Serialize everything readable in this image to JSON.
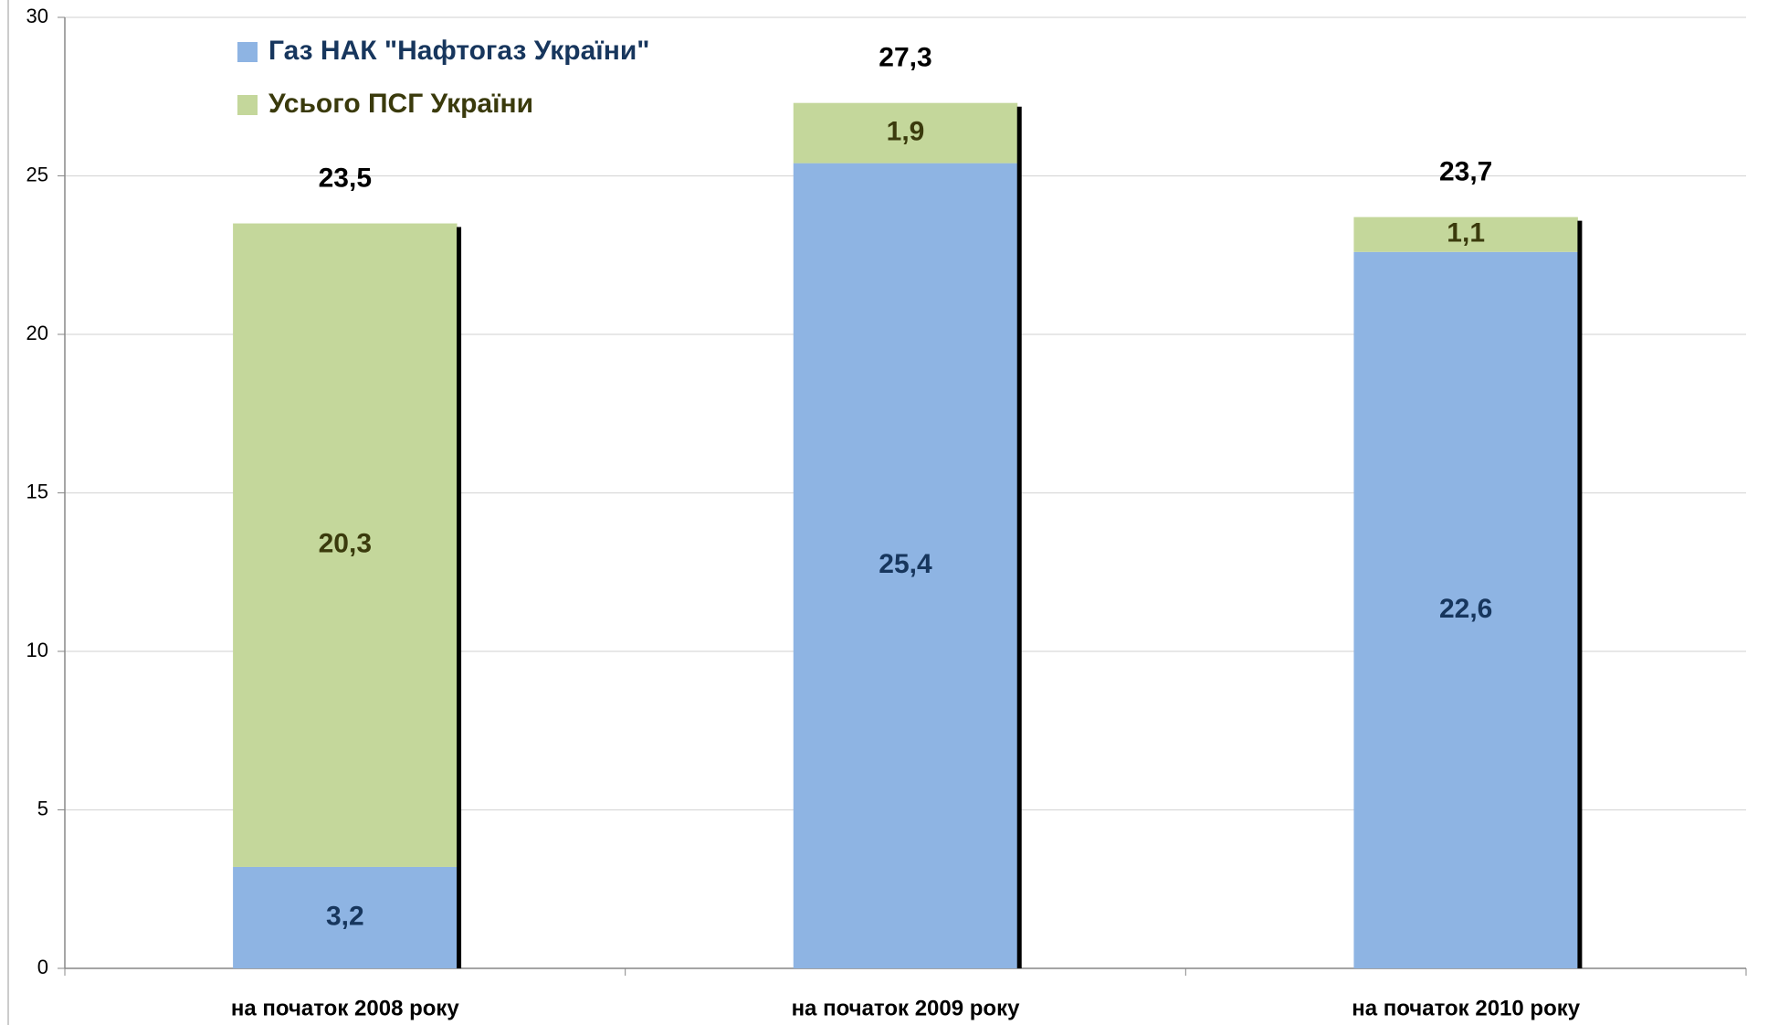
{
  "chart_data": {
    "type": "stacked_bar",
    "categories": [
      "на початок 2008 року",
      "на початок 2009 року",
      "на початок 2010 року"
    ],
    "series": [
      {
        "name": "Газ НАК \"Нафтогаз України\"",
        "color": "#8eb4e3",
        "label_color": "#17365d",
        "values": [
          3.2,
          25.4,
          22.6
        ],
        "value_labels": [
          "3,2",
          "25,4",
          "22,6"
        ]
      },
      {
        "name": "Усього ПСГ України",
        "color": "#c4d79b",
        "label_color": "#3a3a0c",
        "values": [
          20.3,
          1.9,
          1.1
        ],
        "value_labels": [
          "20,3",
          "1,9",
          "1,1"
        ]
      }
    ],
    "totals": [
      23.5,
      27.3,
      23.7
    ],
    "total_labels": [
      "23,5",
      "27,3",
      "23,7"
    ],
    "ylim": [
      0,
      30
    ],
    "yticks": [
      0,
      5,
      10,
      15,
      20,
      25,
      30
    ],
    "grid": true,
    "legend": "upper left"
  }
}
